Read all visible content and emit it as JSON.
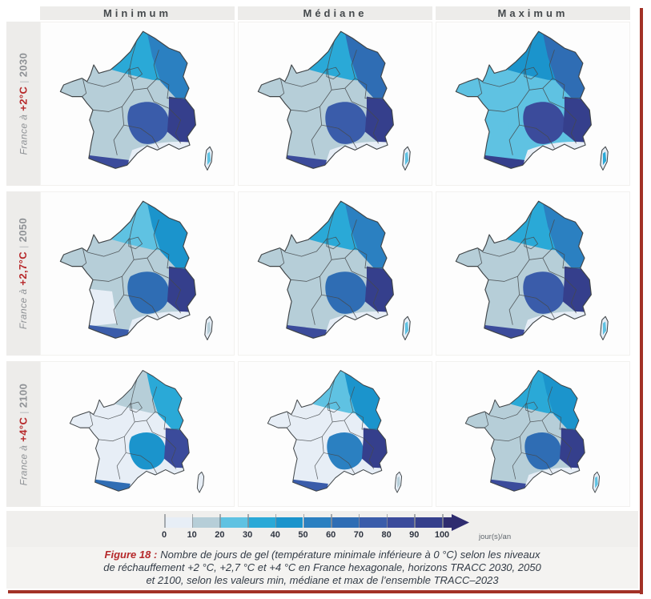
{
  "header": {
    "columns": [
      "Minimum",
      "Médiane",
      "Maximum"
    ]
  },
  "rows": [
    {
      "prefix": "France à",
      "temp": "+2°C",
      "separator": "|",
      "year": "2030"
    },
    {
      "prefix": "France à",
      "temp": "+2,7°C",
      "separator": "|",
      "year": "2050"
    },
    {
      "prefix": "France à",
      "temp": "+4°C",
      "separator": "|",
      "year": "2100"
    }
  ],
  "legend": {
    "tick_labels": [
      "0",
      "10",
      "20",
      "30",
      "40",
      "50",
      "60",
      "70",
      "80",
      "90",
      "100"
    ],
    "unit": "jour(s)/an",
    "palette": [
      "#e7eef6",
      "#b6ced8",
      "#5fc2e2",
      "#2aa9d7",
      "#1b94cc",
      "#2b80c1",
      "#2f6db4",
      "#3a5caa",
      "#3b4b9b",
      "#353f8c"
    ],
    "arrow_color": "#2e2c6f"
  },
  "caption": {
    "label": "Figure 18 :",
    "lines": [
      "Nombre de jours de gel (température minimale inférieure à 0 °C) selon les niveaux",
      "de réchauffement +2 °C, +2,7 °C et +4 °C en France hexagonale, horizons TRACC 2030, 2050",
      "et 2100, selon les valeurs min, médiane et max de l’ensemble TRACC–2023"
    ]
  },
  "maps": {
    "unit": "jour(s)/an",
    "zone_names": [
      "base_west",
      "north_band",
      "northeast",
      "massif_central",
      "alps",
      "mediterranean",
      "southwest",
      "pyrenees",
      "corsica_core"
    ],
    "panels": [
      {
        "row": "2030",
        "col": "Minimum",
        "levels": {
          "base_west": 1,
          "north_band": 3,
          "northeast": 5,
          "massif_central": 7,
          "alps": 9,
          "mediterranean": 0,
          "southwest": 1,
          "pyrenees": 8,
          "corsica_core": 2
        }
      },
      {
        "row": "2030",
        "col": "Médiane",
        "levels": {
          "base_west": 1,
          "north_band": 3,
          "northeast": 6,
          "massif_central": 7,
          "alps": 9,
          "mediterranean": 0,
          "southwest": 1,
          "pyrenees": 8,
          "corsica_core": 2
        }
      },
      {
        "row": "2030",
        "col": "Maximum",
        "levels": {
          "base_west": 2,
          "north_band": 4,
          "northeast": 6,
          "massif_central": 8,
          "alps": 9,
          "mediterranean": 0,
          "southwest": 2,
          "pyrenees": 9,
          "corsica_core": 3
        }
      },
      {
        "row": "2050",
        "col": "Minimum",
        "levels": {
          "base_west": 1,
          "north_band": 2,
          "northeast": 4,
          "massif_central": 6,
          "alps": 9,
          "mediterranean": 0,
          "southwest": 0,
          "pyrenees": 7,
          "corsica_core": 1
        }
      },
      {
        "row": "2050",
        "col": "Médiane",
        "levels": {
          "base_west": 1,
          "north_band": 3,
          "northeast": 5,
          "massif_central": 6,
          "alps": 9,
          "mediterranean": 0,
          "southwest": 1,
          "pyrenees": 8,
          "corsica_core": 2
        }
      },
      {
        "row": "2050",
        "col": "Maximum",
        "levels": {
          "base_west": 1,
          "north_band": 3,
          "northeast": 5,
          "massif_central": 7,
          "alps": 9,
          "mediterranean": 0,
          "southwest": 1,
          "pyrenees": 8,
          "corsica_core": 2
        }
      },
      {
        "row": "2100",
        "col": "Minimum",
        "levels": {
          "base_west": 0,
          "north_band": 1,
          "northeast": 3,
          "massif_central": 4,
          "alps": 8,
          "mediterranean": 0,
          "southwest": 0,
          "pyrenees": 6,
          "corsica_core": 0
        }
      },
      {
        "row": "2100",
        "col": "Médiane",
        "levels": {
          "base_west": 0,
          "north_band": 2,
          "northeast": 4,
          "massif_central": 5,
          "alps": 9,
          "mediterranean": 0,
          "southwest": 0,
          "pyrenees": 7,
          "corsica_core": 1
        }
      },
      {
        "row": "2100",
        "col": "Maximum",
        "levels": {
          "base_west": 1,
          "north_band": 3,
          "northeast": 4,
          "massif_central": 6,
          "alps": 9,
          "mediterranean": 0,
          "southwest": 1,
          "pyrenees": 8,
          "corsica_core": 2
        }
      }
    ]
  },
  "colors": {
    "frame_red": "#a23227",
    "figure_label_red": "#b5282a",
    "header_text": "#45494c",
    "row_label_gray": "#8f9296",
    "band_gray": "#edecea",
    "map_border": "#3f4447"
  }
}
